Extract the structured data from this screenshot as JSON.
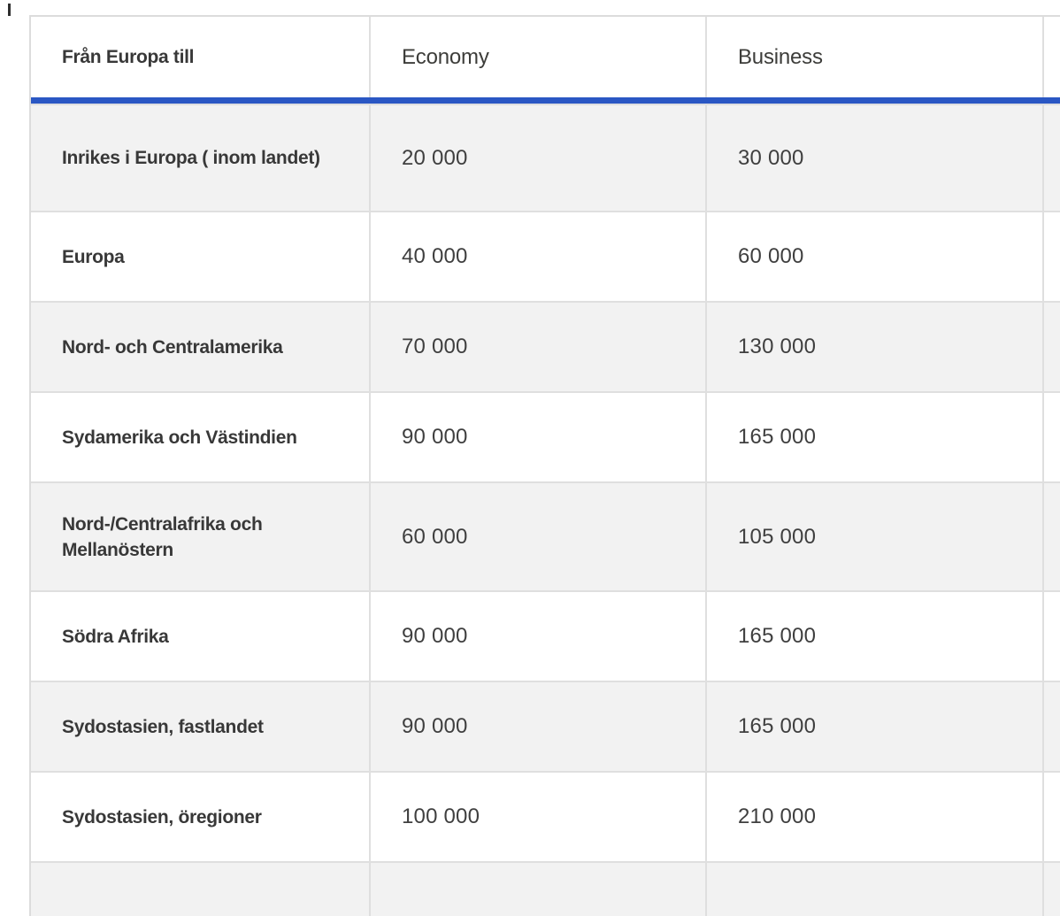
{
  "table": {
    "header": {
      "from_label": "Från Europa till",
      "economy_label": "Economy",
      "business_label": "Business"
    },
    "rows": [
      {
        "destination": "Inrikes i Europa ( inom landet)",
        "economy": "20 000",
        "business": "30 000"
      },
      {
        "destination": "Europa",
        "economy": "40 000",
        "business": "60 000"
      },
      {
        "destination": "Nord- och Centralamerika",
        "economy": "70 000",
        "business": "130 000"
      },
      {
        "destination": "Sydamerika och Västindien",
        "economy": "90 000",
        "business": "165 000"
      },
      {
        "destination": "Nord-/Centralafrika och Mellanöstern",
        "economy": "60 000",
        "business": "105 000"
      },
      {
        "destination": "Södra Afrika",
        "economy": "90 000",
        "business": "165 000"
      },
      {
        "destination": "Sydostasien, fastlandet",
        "economy": "90 000",
        "business": "165 000"
      },
      {
        "destination": "Sydostasien, öregioner",
        "economy": "100 000",
        "business": "210 000"
      }
    ],
    "colors": {
      "accent_blue": "#2a57c4",
      "alt_row_background": "#f2f2f2",
      "grid_border": "#dfdfdf",
      "header_text": "#383838",
      "value_text": "#3f3f3f"
    }
  }
}
